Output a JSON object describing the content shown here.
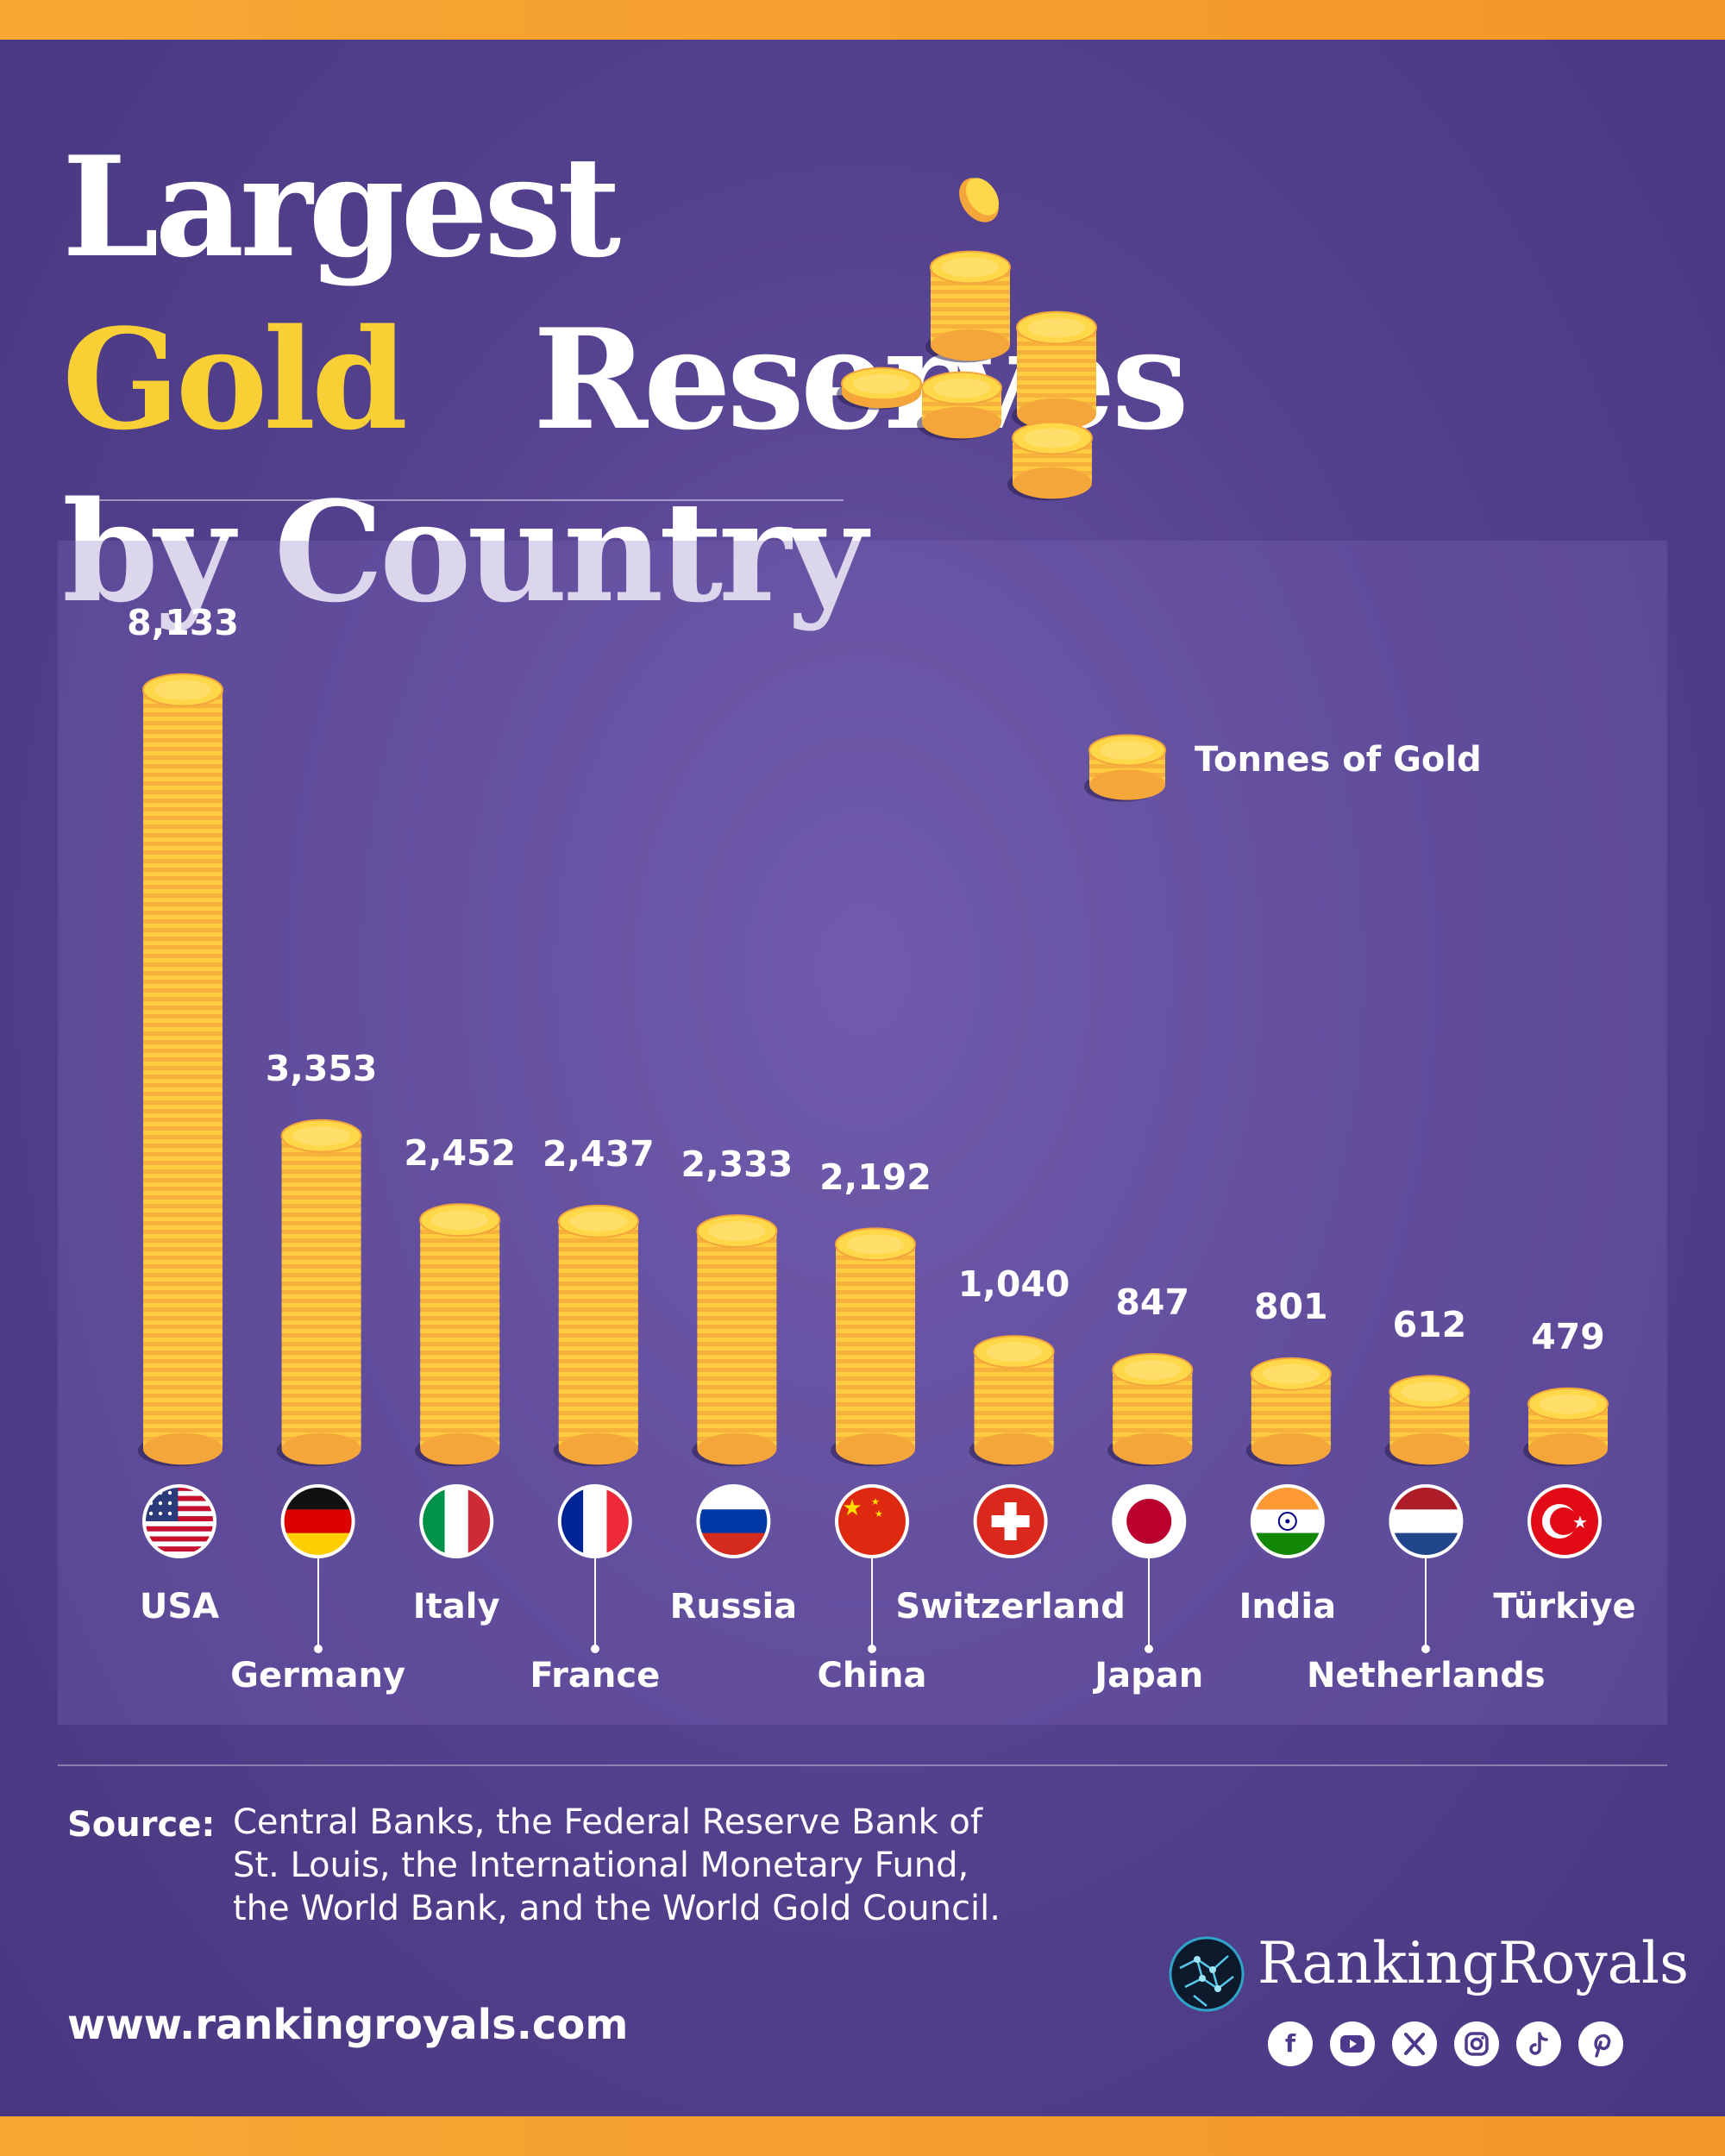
{
  "title": {
    "pre": "Largest ",
    "highlight": "Gold",
    "post": "Reserves",
    "line2": "by Country"
  },
  "legend": {
    "label": "Tonnes of Gold"
  },
  "chart_data": {
    "type": "bar",
    "title": "Largest Gold Reserves by Country",
    "xlabel": "",
    "ylabel": "",
    "ylim": [
      0,
      8133
    ],
    "grid": false,
    "legend": "top-right",
    "categories": [
      "USA",
      "Germany",
      "Italy",
      "France",
      "Russia",
      "China",
      "Switzerland",
      "Japan",
      "India",
      "Netherlands",
      "Türkiye"
    ],
    "value_labels": [
      "8,133",
      "3,353",
      "2,452",
      "2,437",
      "2,333",
      "2,192",
      "1,040",
      "847",
      "801",
      "612",
      "479"
    ],
    "series": [
      {
        "name": "Tonnes of Gold",
        "values": [
          8133,
          3353,
          2452,
          2437,
          2333,
          2192,
          1040,
          847,
          801,
          612,
          479
        ]
      }
    ]
  },
  "source": {
    "label": "Source:",
    "text": "Central Banks,  the Federal Reserve Bank of St. Louis, the International Monetary Fund, the World Bank, and the World Gold Council."
  },
  "website": "www.rankingroyals.com",
  "brand": {
    "name": "RankingRoyals"
  },
  "social": [
    "facebook-icon",
    "youtube-icon",
    "x-icon",
    "instagram-icon",
    "tiktok-icon",
    "pinterest-icon"
  ],
  "colors": {
    "background": "#4d3a8c",
    "gold": "#f8cf35",
    "coin": "#ffc533",
    "coin_edge": "#f4a63a",
    "accent_bar": "#f7a833"
  }
}
